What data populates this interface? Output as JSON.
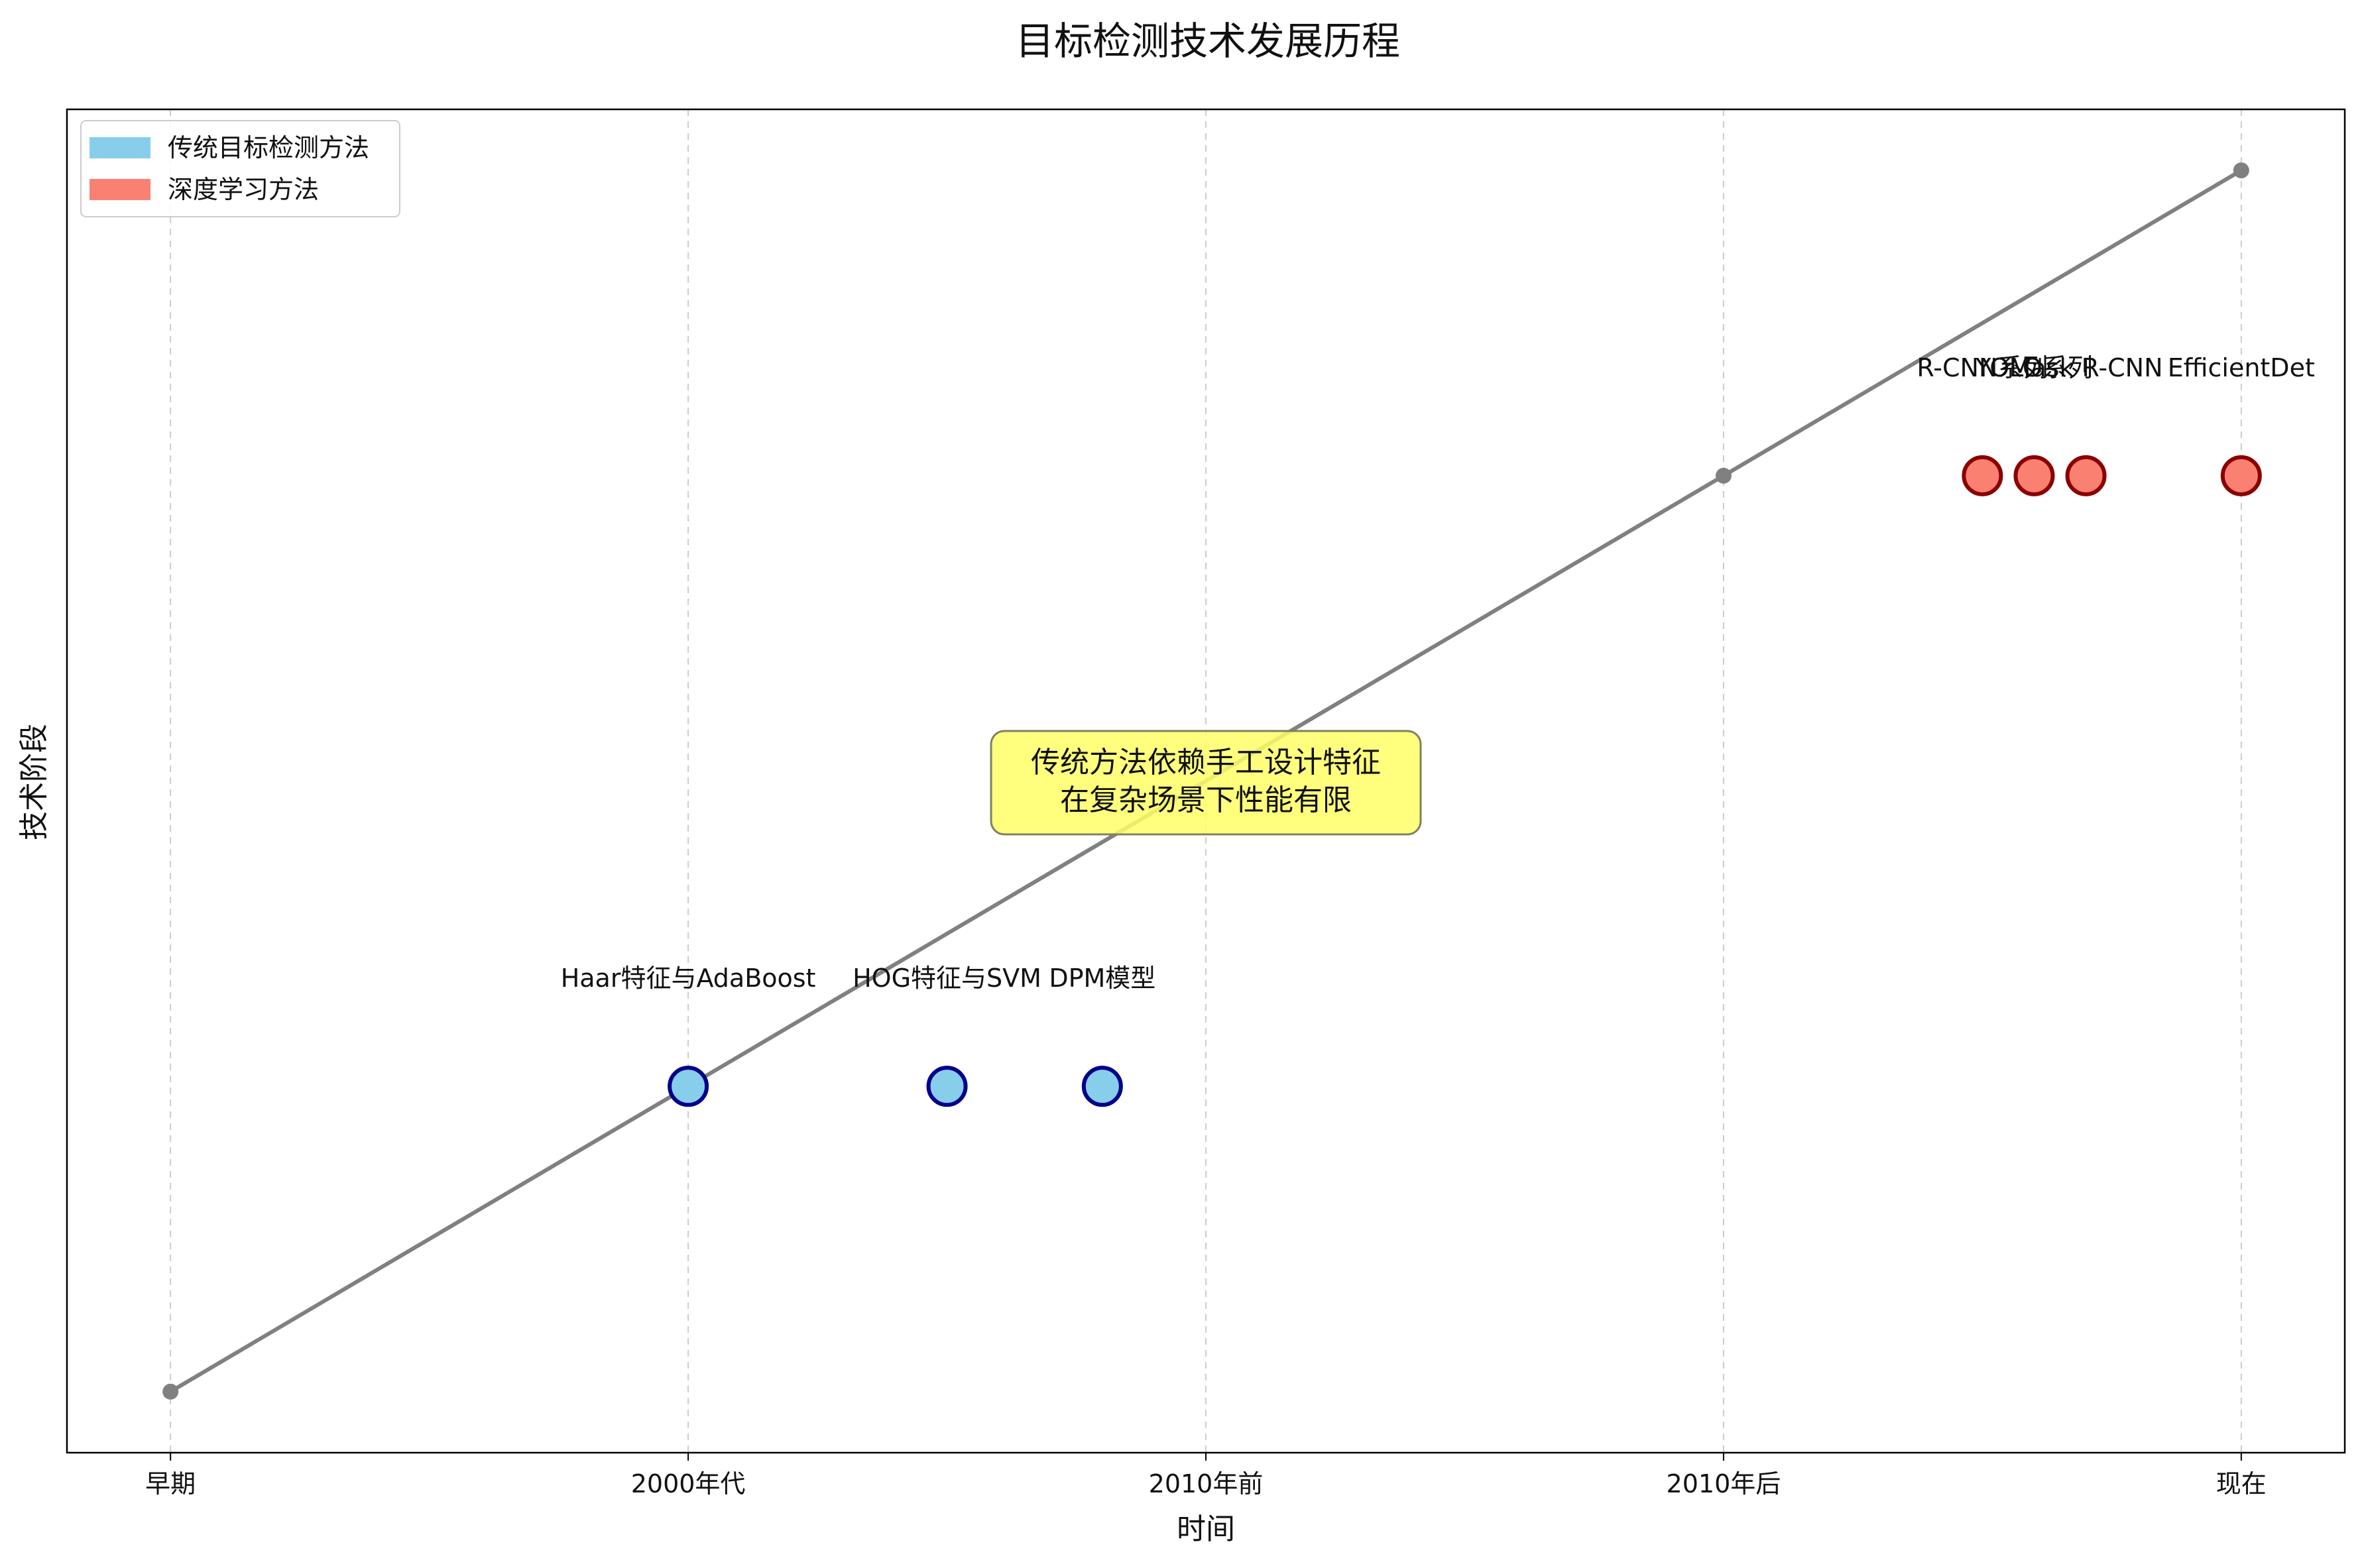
{
  "chart_data": {
    "type": "scatter",
    "title": "目标检测技术发展历程",
    "xlabel": "时间",
    "ylabel": "技术阶段",
    "x_categories": [
      "早期",
      "2000年代",
      "2010年前",
      "2010年后",
      "现在"
    ],
    "xlim": [
      -0.2,
      4.2
    ],
    "ylim": [
      -0.2,
      4.2
    ],
    "grid": "vertical dashed",
    "legend": {
      "placement": "top-left",
      "entries": [
        {
          "label": "传统目标检测方法",
          "color": "#87ceeb"
        },
        {
          "label": "深度学习方法",
          "color": "#fa8072"
        }
      ]
    },
    "trend_line": {
      "color": "#808080",
      "points": [
        [
          0,
          0
        ],
        [
          1,
          1
        ],
        [
          3,
          3
        ],
        [
          4,
          4
        ]
      ]
    },
    "series": [
      {
        "name": "传统目标检测方法",
        "fill": "#87ceeb",
        "edge": "#00008b",
        "points": [
          {
            "x": 1.0,
            "y": 1,
            "label": "Haar特征与AdaBoost"
          },
          {
            "x": 1.5,
            "y": 1,
            "label": "HOG特征与SVM"
          },
          {
            "x": 1.8,
            "y": 1,
            "label": "DPM模型"
          }
        ]
      },
      {
        "name": "深度学习方法",
        "fill": "#fa8072",
        "edge": "#8b0000",
        "points": [
          {
            "x": 3.5,
            "y": 3,
            "label": "R-CNN系列"
          },
          {
            "x": 3.6,
            "y": 3,
            "label": "YOLO系列"
          },
          {
            "x": 3.7,
            "y": 3,
            "label": "Mask R-CNN"
          },
          {
            "x": 4.0,
            "y": 3,
            "label": "EfficientDet"
          }
        ]
      }
    ],
    "annotation": {
      "lines": [
        "传统方法依赖手工设计特征",
        "在复杂场景下性能有限"
      ],
      "x": 2.0,
      "y": 2.0,
      "box_color": "#ffff66",
      "border_color": "#808060"
    }
  }
}
